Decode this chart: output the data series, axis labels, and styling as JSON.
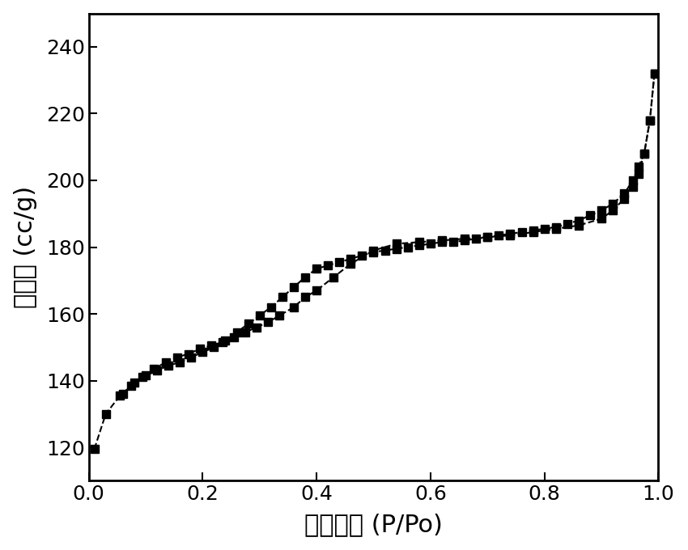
{
  "adsorption_x": [
    0.01,
    0.03,
    0.055,
    0.075,
    0.095,
    0.115,
    0.135,
    0.155,
    0.175,
    0.195,
    0.215,
    0.235,
    0.255,
    0.275,
    0.295,
    0.315,
    0.335,
    0.36,
    0.38,
    0.4,
    0.43,
    0.46,
    0.5,
    0.54,
    0.58,
    0.62,
    0.66,
    0.7,
    0.74,
    0.78,
    0.82,
    0.86,
    0.9,
    0.92,
    0.94,
    0.955,
    0.965,
    0.975,
    0.985,
    0.993
  ],
  "adsorption_y": [
    119.5,
    130.0,
    135.5,
    138.5,
    141.0,
    143.5,
    145.5,
    147.0,
    148.0,
    149.5,
    150.5,
    151.5,
    153.0,
    154.5,
    156.0,
    157.5,
    159.5,
    162.0,
    165.0,
    167.0,
    171.0,
    175.0,
    179.0,
    181.0,
    181.5,
    182.0,
    182.5,
    183.0,
    183.5,
    184.5,
    185.5,
    186.5,
    188.5,
    191.0,
    194.5,
    198.0,
    202.0,
    208.0,
    218.0,
    232.0
  ],
  "desorption_x": [
    0.993,
    0.985,
    0.975,
    0.965,
    0.955,
    0.94,
    0.92,
    0.9,
    0.88,
    0.86,
    0.84,
    0.82,
    0.8,
    0.78,
    0.76,
    0.74,
    0.72,
    0.7,
    0.68,
    0.66,
    0.64,
    0.62,
    0.6,
    0.58,
    0.56,
    0.54,
    0.52,
    0.5,
    0.48,
    0.46,
    0.44,
    0.42,
    0.4,
    0.38,
    0.36,
    0.34,
    0.32,
    0.3,
    0.28,
    0.26,
    0.24,
    0.22,
    0.2,
    0.18,
    0.16,
    0.14,
    0.12,
    0.1,
    0.08,
    0.06
  ],
  "desorption_y": [
    232.0,
    218.0,
    208.0,
    204.0,
    200.0,
    196.0,
    193.0,
    191.0,
    189.5,
    188.0,
    187.0,
    186.0,
    185.5,
    185.0,
    184.5,
    184.0,
    183.5,
    183.0,
    182.5,
    182.0,
    181.5,
    181.5,
    181.0,
    180.5,
    180.0,
    179.5,
    179.0,
    178.5,
    177.5,
    176.5,
    175.5,
    174.5,
    173.5,
    171.0,
    168.0,
    165.0,
    162.0,
    159.5,
    157.0,
    154.5,
    152.0,
    150.0,
    148.5,
    147.0,
    145.5,
    144.5,
    143.0,
    141.5,
    139.5,
    136.0
  ],
  "xlabel": "相对压力 (P/Po)",
  "ylabel": "吸附量 (cc/g)",
  "xlim": [
    0.0,
    1.0
  ],
  "ylim": [
    110,
    250
  ],
  "xticks": [
    0.0,
    0.2,
    0.4,
    0.6,
    0.8,
    1.0
  ],
  "yticks": [
    120,
    140,
    160,
    180,
    200,
    220,
    240
  ],
  "line_color": "#000000",
  "marker": "s",
  "markersize": 7,
  "linewidth": 1.5,
  "linestyle": "--",
  "background_color": "#ffffff",
  "xlabel_fontsize": 22,
  "ylabel_fontsize": 22,
  "tick_fontsize": 18,
  "spine_linewidth": 2.0
}
